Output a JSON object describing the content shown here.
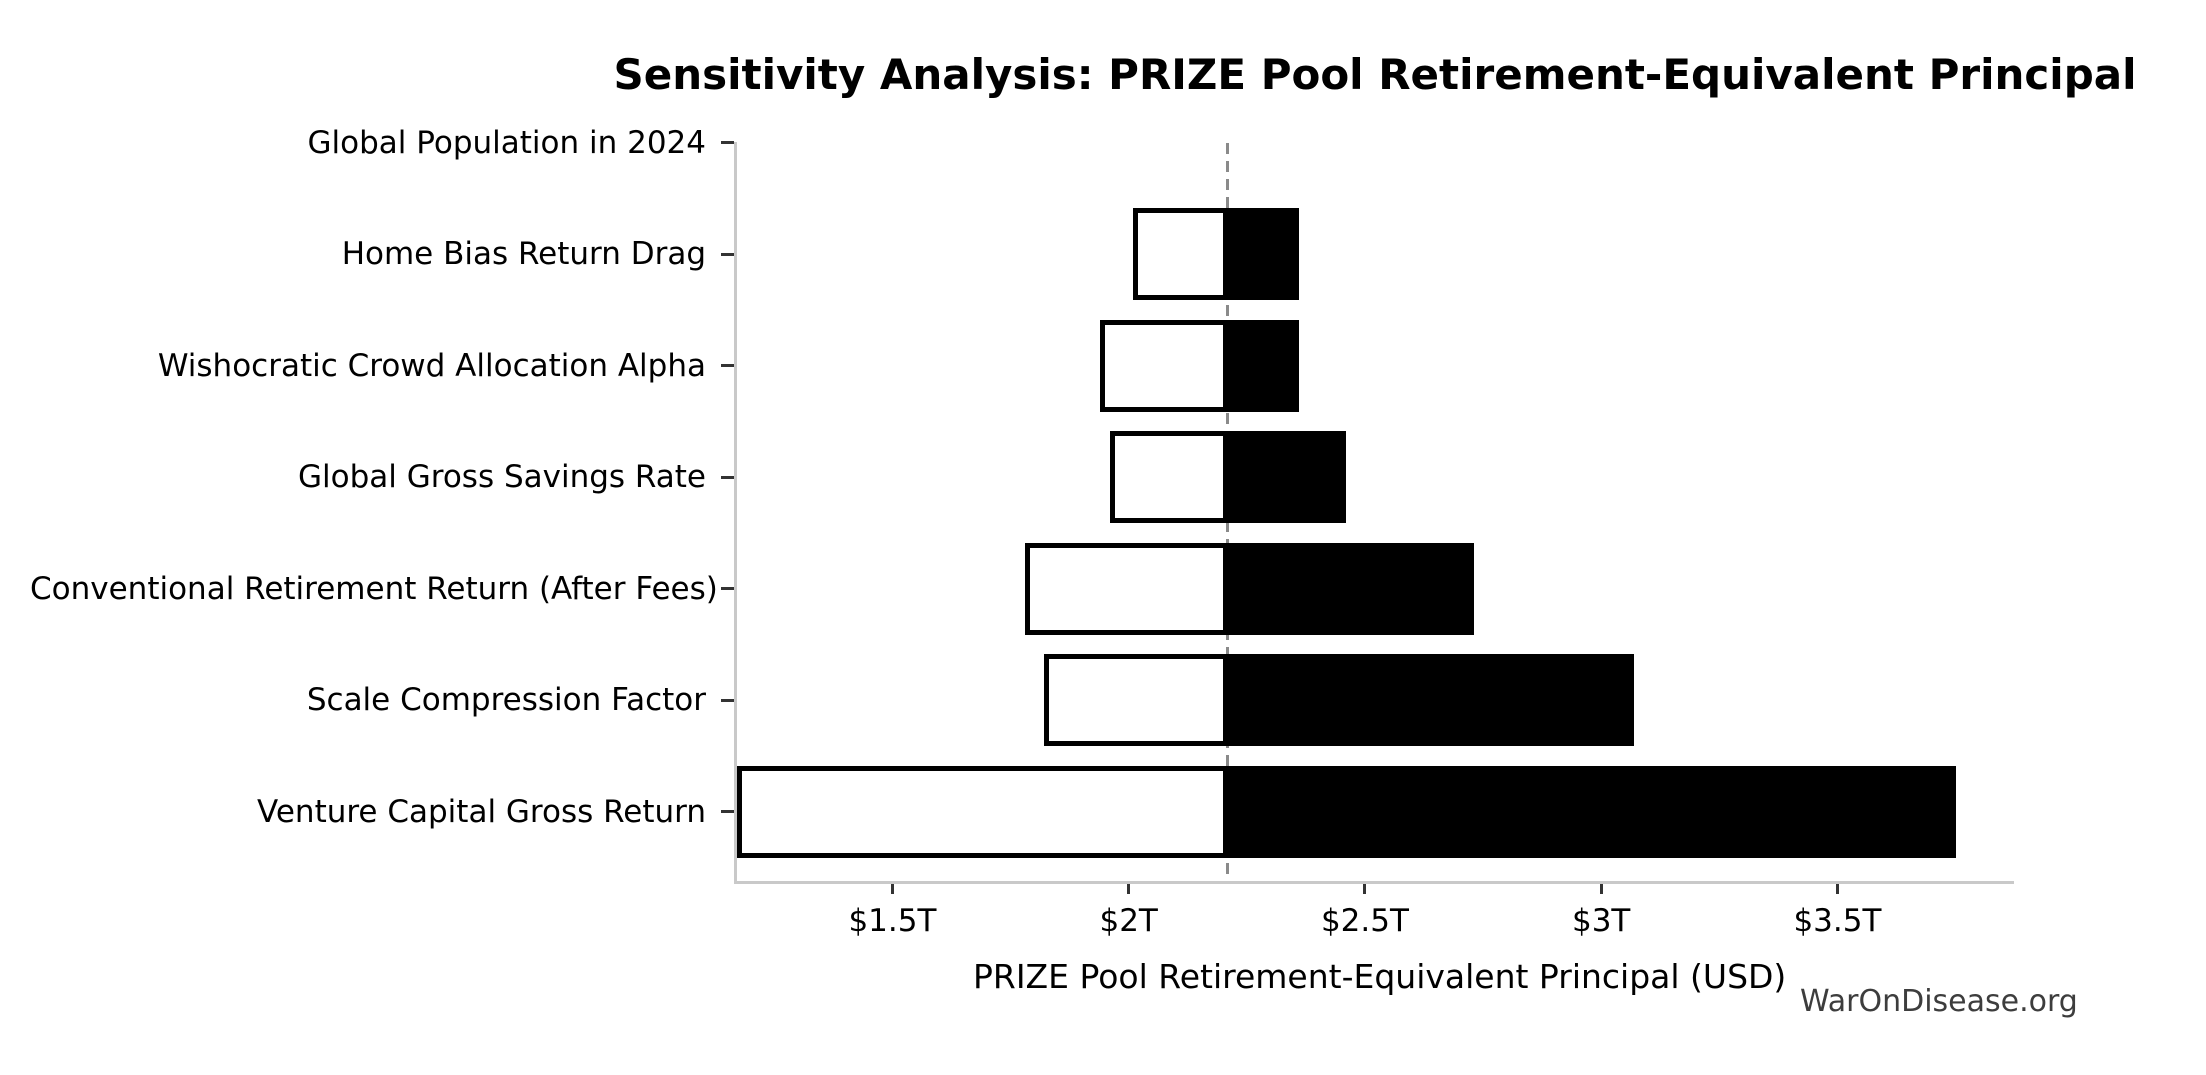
{
  "chart_data": {
    "type": "bar",
    "subtype": "tornado-sensitivity",
    "title": "Sensitivity Analysis: PRIZE Pool Retirement-Equivalent Principal",
    "xlabel": "PRIZE Pool Retirement-Equivalent Principal (USD)",
    "unit": "trillions of USD",
    "baseline": 2.21,
    "xlim": [
      1.17,
      3.87
    ],
    "grid": false,
    "legend": null,
    "xticks": [
      {
        "label": "$1.5T",
        "value": 1.5
      },
      {
        "label": "$2T",
        "value": 2.0
      },
      {
        "label": "$2.5T",
        "value": 2.5
      },
      {
        "label": "$3T",
        "value": 3.0
      },
      {
        "label": "$3.5T",
        "value": 3.5
      }
    ],
    "categories": [
      "Global Population in 2024",
      "Home Bias Return Drag",
      "Wishocratic Crowd Allocation Alpha",
      "Global Gross Savings Rate",
      "Conventional Retirement Return (After Fees)",
      "Scale Compression Factor",
      "Venture Capital Gross Return"
    ],
    "series": [
      {
        "name": "Low case (white bar, left of baseline)",
        "values": [
          2.21,
          2.01,
          1.94,
          1.96,
          1.78,
          1.82,
          1.17
        ]
      },
      {
        "name": "High case (black bar, right of baseline)",
        "values": [
          2.21,
          2.36,
          2.36,
          2.46,
          2.73,
          3.07,
          3.75
        ]
      }
    ],
    "layout_hints": {
      "baseline_style": "vertical dashed gray line",
      "zero_width_categories": [
        "Global Population in 2024"
      ],
      "clipped_at_axis_min": [
        "Venture Capital Gross Return"
      ],
      "spines": "left and bottom only, light gray"
    },
    "colors": {
      "background": "#ffffff",
      "bar_low_fill": "#ffffff",
      "bar_low_edge": "#000000",
      "bar_high_fill": "#000000",
      "baseline_line": "#8a8a8a",
      "spine": "#c9c9c9",
      "tick_mark": "#333333",
      "text": "#000000",
      "watermark_text": "#3d3d3d"
    },
    "watermark": "WarOnDisease.org"
  }
}
